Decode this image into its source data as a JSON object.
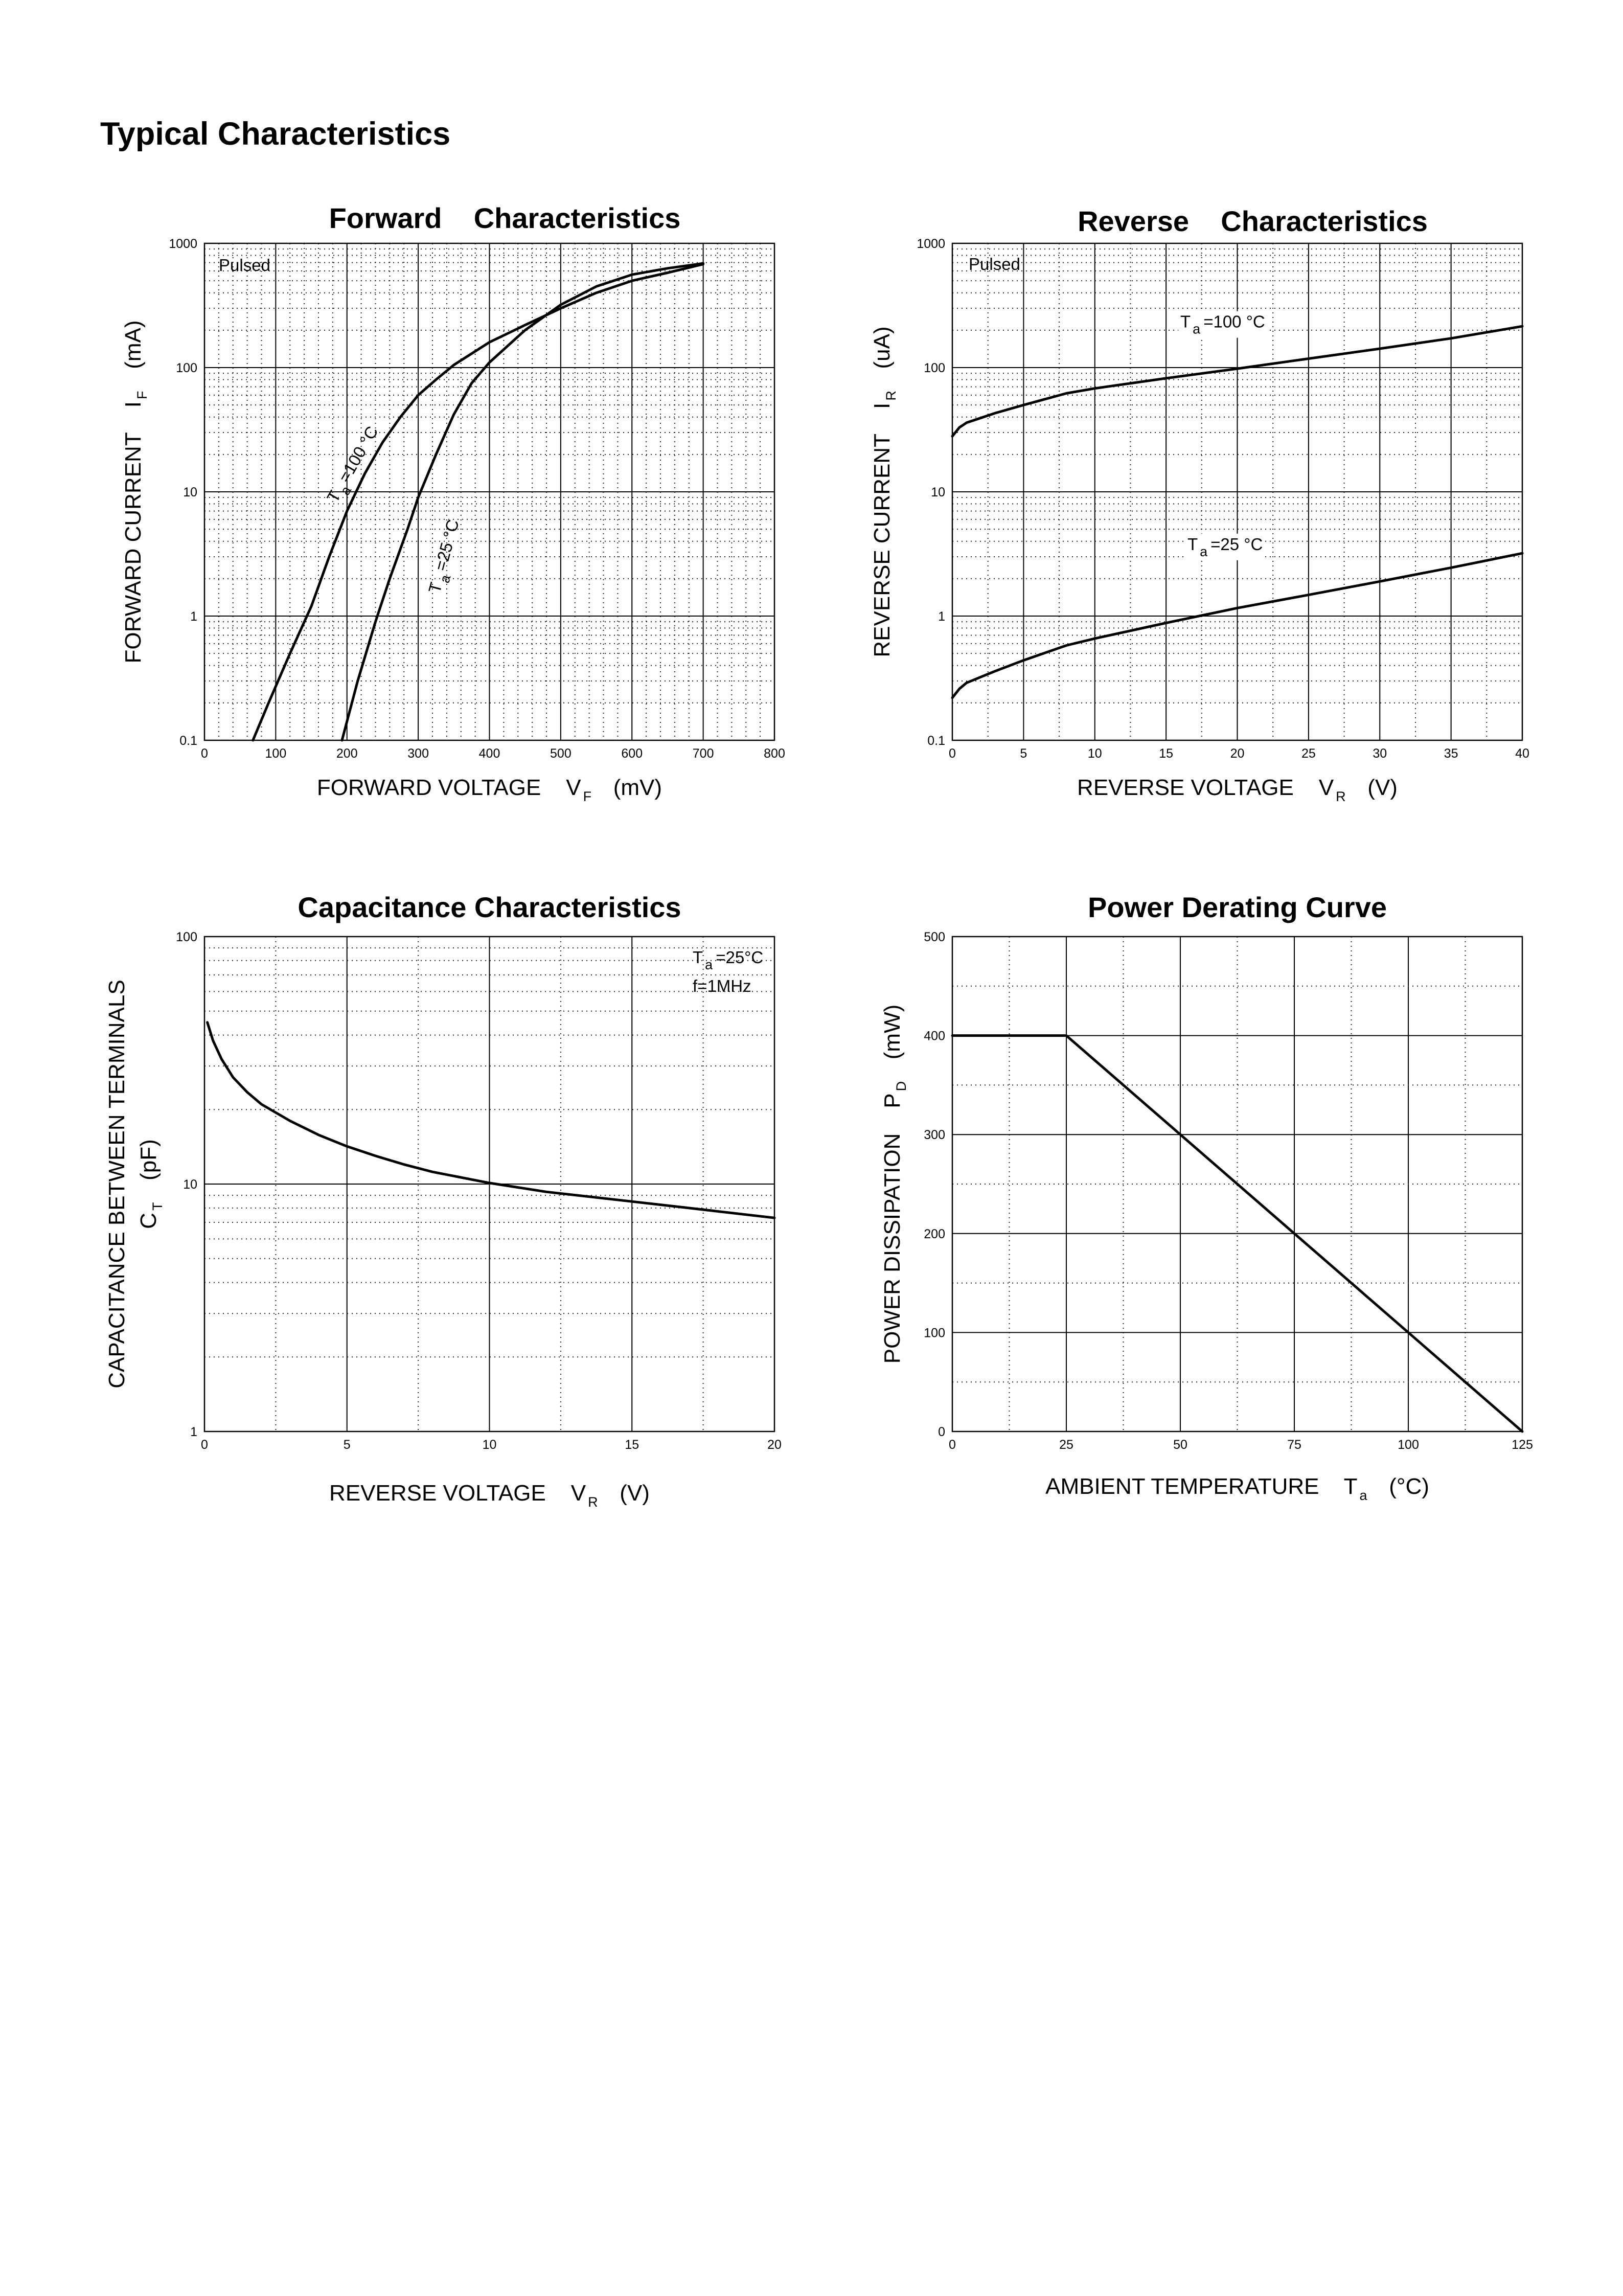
{
  "page": {
    "title": "Typical Characteristics"
  },
  "chart_data": [
    {
      "id": "forward",
      "type": "line",
      "title": "Forward    Characteristics",
      "xlabel": {
        "main": "FORWARD VOLTAGE    V",
        "sub": "F",
        "unit": "(mV)"
      },
      "ylabel": {
        "main": "FORWARD CURRENT    I",
        "sub": "F",
        "unit": "(mA)"
      },
      "xscale": "linear",
      "xlim": [
        0,
        800
      ],
      "xmajor": 100,
      "xminor": 0,
      "yscale": "log",
      "ylim": [
        0.1,
        1000
      ],
      "xticks": [
        0,
        100,
        200,
        300,
        400,
        500,
        600,
        700,
        800
      ],
      "yticks": [
        0.1,
        1,
        10,
        100,
        1000
      ],
      "xtick_labels": [
        "0",
        "100",
        "200",
        "300",
        "400",
        "500",
        "600",
        "700",
        "800"
      ],
      "ytick_labels": [
        "0.1",
        "1",
        "10",
        "100",
        "1000"
      ],
      "note": "Pulsed",
      "series": [
        {
          "name": "Ta=100°C",
          "label": {
            "pre": "T",
            "sub": "a",
            "post": "=100 °C",
            "x": 185,
            "y": 8,
            "rot": -60
          },
          "points": [
            [
              68,
              0.1
            ],
            [
              90,
              0.2
            ],
            [
              120,
              0.5
            ],
            [
              150,
              1.2
            ],
            [
              175,
              3
            ],
            [
              200,
              7
            ],
            [
              225,
              14
            ],
            [
              250,
              25
            ],
            [
              275,
              40
            ],
            [
              300,
              60
            ],
            [
              325,
              80
            ],
            [
              350,
              105
            ],
            [
              400,
              160
            ],
            [
              450,
              220
            ],
            [
              500,
              300
            ],
            [
              550,
              400
            ],
            [
              600,
              500
            ],
            [
              650,
              580
            ],
            [
              700,
              680
            ]
          ]
        },
        {
          "name": "Ta=25°C",
          "label": {
            "pre": "T",
            "sub": "a",
            "post": "=25 °C",
            "x": 330,
            "y": 1.5,
            "rot": -75
          },
          "points": [
            [
              193,
              0.1
            ],
            [
              215,
              0.3
            ],
            [
              240,
              0.9
            ],
            [
              260,
              2
            ],
            [
              285,
              5
            ],
            [
              300,
              9
            ],
            [
              325,
              20
            ],
            [
              350,
              42
            ],
            [
              375,
              75
            ],
            [
              400,
              110
            ],
            [
              450,
              200
            ],
            [
              500,
              320
            ],
            [
              550,
              450
            ],
            [
              600,
              560
            ],
            [
              650,
              630
            ],
            [
              700,
              690
            ]
          ]
        }
      ]
    },
    {
      "id": "reverse",
      "type": "line",
      "title": "Reverse    Characteristics",
      "xlabel": {
        "main": "REVERSE VOLTAGE    V",
        "sub": "R",
        "unit": "(V)"
      },
      "ylabel": {
        "main": "REVERSE CURRENT    I",
        "sub": "R",
        "unit": "(uA)"
      },
      "xscale": "linear",
      "xlim": [
        0,
        40
      ],
      "xmajor": 5,
      "xminor": 2.5,
      "yscale": "log",
      "ylim": [
        0.1,
        1000
      ],
      "xticks": [
        0,
        5,
        10,
        15,
        20,
        25,
        30,
        35,
        40
      ],
      "yticks": [
        0.1,
        1,
        10,
        100,
        1000
      ],
      "xtick_labels": [
        "0",
        "5",
        "10",
        "15",
        "20",
        "25",
        "30",
        "35",
        "40"
      ],
      "ytick_labels": [
        "0.1",
        "1",
        "10",
        "100",
        "1000"
      ],
      "note": "Pulsed",
      "series": [
        {
          "name": "Ta=100°C",
          "label": {
            "pre": "T",
            "sub": "a",
            "post": "=100 °C",
            "x": 16,
            "y": 210,
            "rot": 0
          },
          "points": [
            [
              0,
              28
            ],
            [
              0.5,
              33
            ],
            [
              1,
              36
            ],
            [
              3,
              43
            ],
            [
              5,
              50
            ],
            [
              8,
              62
            ],
            [
              10,
              68
            ],
            [
              15,
              82
            ],
            [
              20,
              98
            ],
            [
              25,
              118
            ],
            [
              30,
              142
            ],
            [
              35,
              172
            ],
            [
              40,
              215
            ]
          ]
        },
        {
          "name": "Ta=25°C",
          "label": {
            "pre": "T",
            "sub": "a",
            "post": "=25 °C",
            "x": 16.5,
            "y": 3.4,
            "rot": 0
          },
          "points": [
            [
              0,
              0.22
            ],
            [
              0.5,
              0.26
            ],
            [
              1,
              0.29
            ],
            [
              3,
              0.36
            ],
            [
              5,
              0.44
            ],
            [
              8,
              0.58
            ],
            [
              10,
              0.66
            ],
            [
              15,
              0.88
            ],
            [
              20,
              1.16
            ],
            [
              25,
              1.48
            ],
            [
              30,
              1.9
            ],
            [
              35,
              2.45
            ],
            [
              40,
              3.2
            ]
          ]
        }
      ]
    },
    {
      "id": "capacitance",
      "type": "line",
      "title": "Capacitance Characteristics",
      "xlabel": {
        "main": "REVERSE VOLTAGE    V",
        "sub": "R",
        "unit": "(V)"
      },
      "ylabel": {
        "main": "CAPACITANCE BETWEEN TERMINALS",
        "main2": "C",
        "sub": "T",
        "unit": "(pF)"
      },
      "xscale": "linear",
      "xlim": [
        0,
        20
      ],
      "xmajor": 5,
      "xminor": 2.5,
      "yscale": "log",
      "ylim": [
        1,
        100
      ],
      "xticks": [
        0,
        5,
        10,
        15,
        20
      ],
      "yticks": [
        1,
        10,
        100
      ],
      "xtick_labels": [
        "0",
        "5",
        "10",
        "15",
        "20"
      ],
      "ytick_labels": [
        "1",
        "10",
        "100"
      ],
      "conditions": {
        "line1": {
          "pre": "T",
          "sub": "a",
          "post": "=25°C"
        },
        "line2": "f=1MHz"
      },
      "series": [
        {
          "name": "Ta=25°C f=1MHz",
          "points": [
            [
              0.1,
              45
            ],
            [
              0.3,
              38
            ],
            [
              0.6,
              32
            ],
            [
              1,
              27
            ],
            [
              1.5,
              23.5
            ],
            [
              2,
              21
            ],
            [
              3,
              18
            ],
            [
              4,
              15.8
            ],
            [
              5,
              14.2
            ],
            [
              6,
              13
            ],
            [
              7,
              12
            ],
            [
              8,
              11.2
            ],
            [
              10,
              10.1
            ],
            [
              12,
              9.3
            ],
            [
              15,
              8.5
            ],
            [
              17,
              8
            ],
            [
              20,
              7.3
            ]
          ]
        }
      ]
    },
    {
      "id": "derating",
      "type": "line",
      "title": "Power Derating Curve",
      "xlabel": {
        "main": "AMBIENT TEMPERATURE    T",
        "sub": "a",
        "unit": "(°C)"
      },
      "ylabel": {
        "main": "POWER DISSIPATION    P",
        "sub": "D",
        "unit": "(mW)"
      },
      "xscale": "linear",
      "xlim": [
        0,
        125
      ],
      "xmajor": 25,
      "xminor": 12.5,
      "yscale": "linear",
      "ylim": [
        0,
        500
      ],
      "ymajor": 100,
      "yminor": 50,
      "xticks": [
        0,
        25,
        50,
        75,
        100,
        125
      ],
      "yticks": [
        0,
        100,
        200,
        300,
        400,
        500
      ],
      "xtick_labels": [
        "0",
        "25",
        "50",
        "75",
        "100",
        "125"
      ],
      "ytick_labels": [
        "0",
        "100",
        "200",
        "300",
        "400",
        "500"
      ],
      "series": [
        {
          "name": "PD",
          "points": [
            [
              0,
              400
            ],
            [
              25,
              400
            ],
            [
              125,
              0
            ]
          ]
        }
      ]
    }
  ]
}
